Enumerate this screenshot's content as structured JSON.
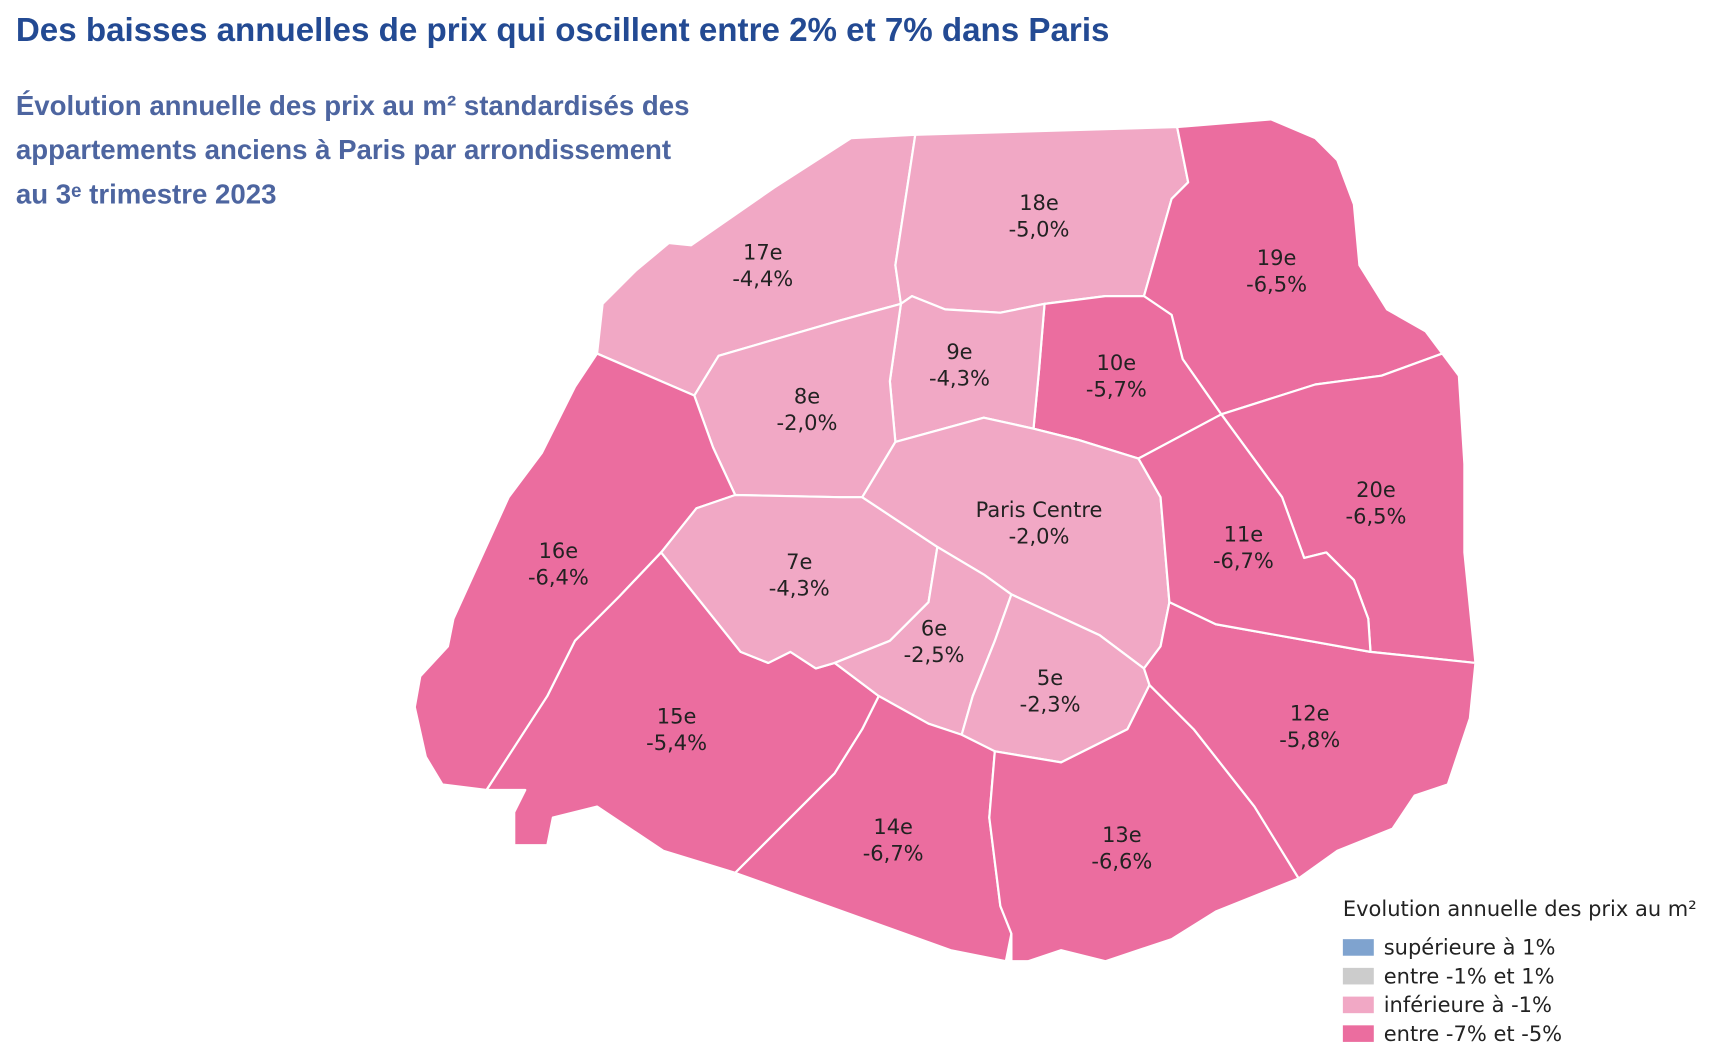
{
  "header": {
    "title": "Des baisses annuelles de prix qui oscillent entre 2% et 7% dans Paris",
    "subtitle": [
      "Évolution annuelle des prix au m² standardisés des",
      "appartements anciens à Paris par arrondissement",
      "au 3ᵉ trimestre 2023"
    ]
  },
  "map": {
    "regions": [
      {
        "name": "17e",
        "value": "-4,4%",
        "color": "#f1a8c5"
      },
      {
        "name": "18e",
        "value": "-5,0%",
        "color": "#f1a8c5"
      },
      {
        "name": "19e",
        "value": "-6,5%",
        "color": "#eb6d9f"
      },
      {
        "name": "20e",
        "value": "-6,5%",
        "color": "#eb6d9f"
      },
      {
        "name": "10e",
        "value": "-5,7%",
        "color": "#eb6d9f"
      },
      {
        "name": "9e",
        "value": "-4,3%",
        "color": "#f1a8c5"
      },
      {
        "name": "8e",
        "value": "-2,0%",
        "color": "#f1a8c5"
      },
      {
        "name": "16e",
        "value": "-6,4%",
        "color": "#eb6d9f"
      },
      {
        "name": "15e",
        "value": "-5,4%",
        "color": "#eb6d9f"
      },
      {
        "name": "7e",
        "value": "-4,3%",
        "color": "#f1a8c5"
      },
      {
        "name": "Paris Centre",
        "value": "-2,0%",
        "color": "#f1a8c5"
      },
      {
        "name": "6e",
        "value": "-2,5%",
        "color": "#f1a8c5"
      },
      {
        "name": "5e",
        "value": "-2,3%",
        "color": "#f1a8c5"
      },
      {
        "name": "14e",
        "value": "-6,7%",
        "color": "#eb6d9f"
      },
      {
        "name": "13e",
        "value": "-6,6%",
        "color": "#eb6d9f"
      },
      {
        "name": "12e",
        "value": "-5,8%",
        "color": "#eb6d9f"
      },
      {
        "name": "11e",
        "value": "-6,7%",
        "color": "#eb6d9f"
      }
    ]
  },
  "legend": {
    "title": "Evolution annuelle des prix au m²",
    "items": [
      {
        "label": "supérieure à 1%",
        "color": "#7fa3cf"
      },
      {
        "label": "entre -1% et 1%",
        "color": "#cccccc"
      },
      {
        "label": "inférieure à -1%",
        "color": "#f1a8c5"
      },
      {
        "label": "entre -7% et -5%",
        "color": "#eb6d9f"
      }
    ]
  }
}
